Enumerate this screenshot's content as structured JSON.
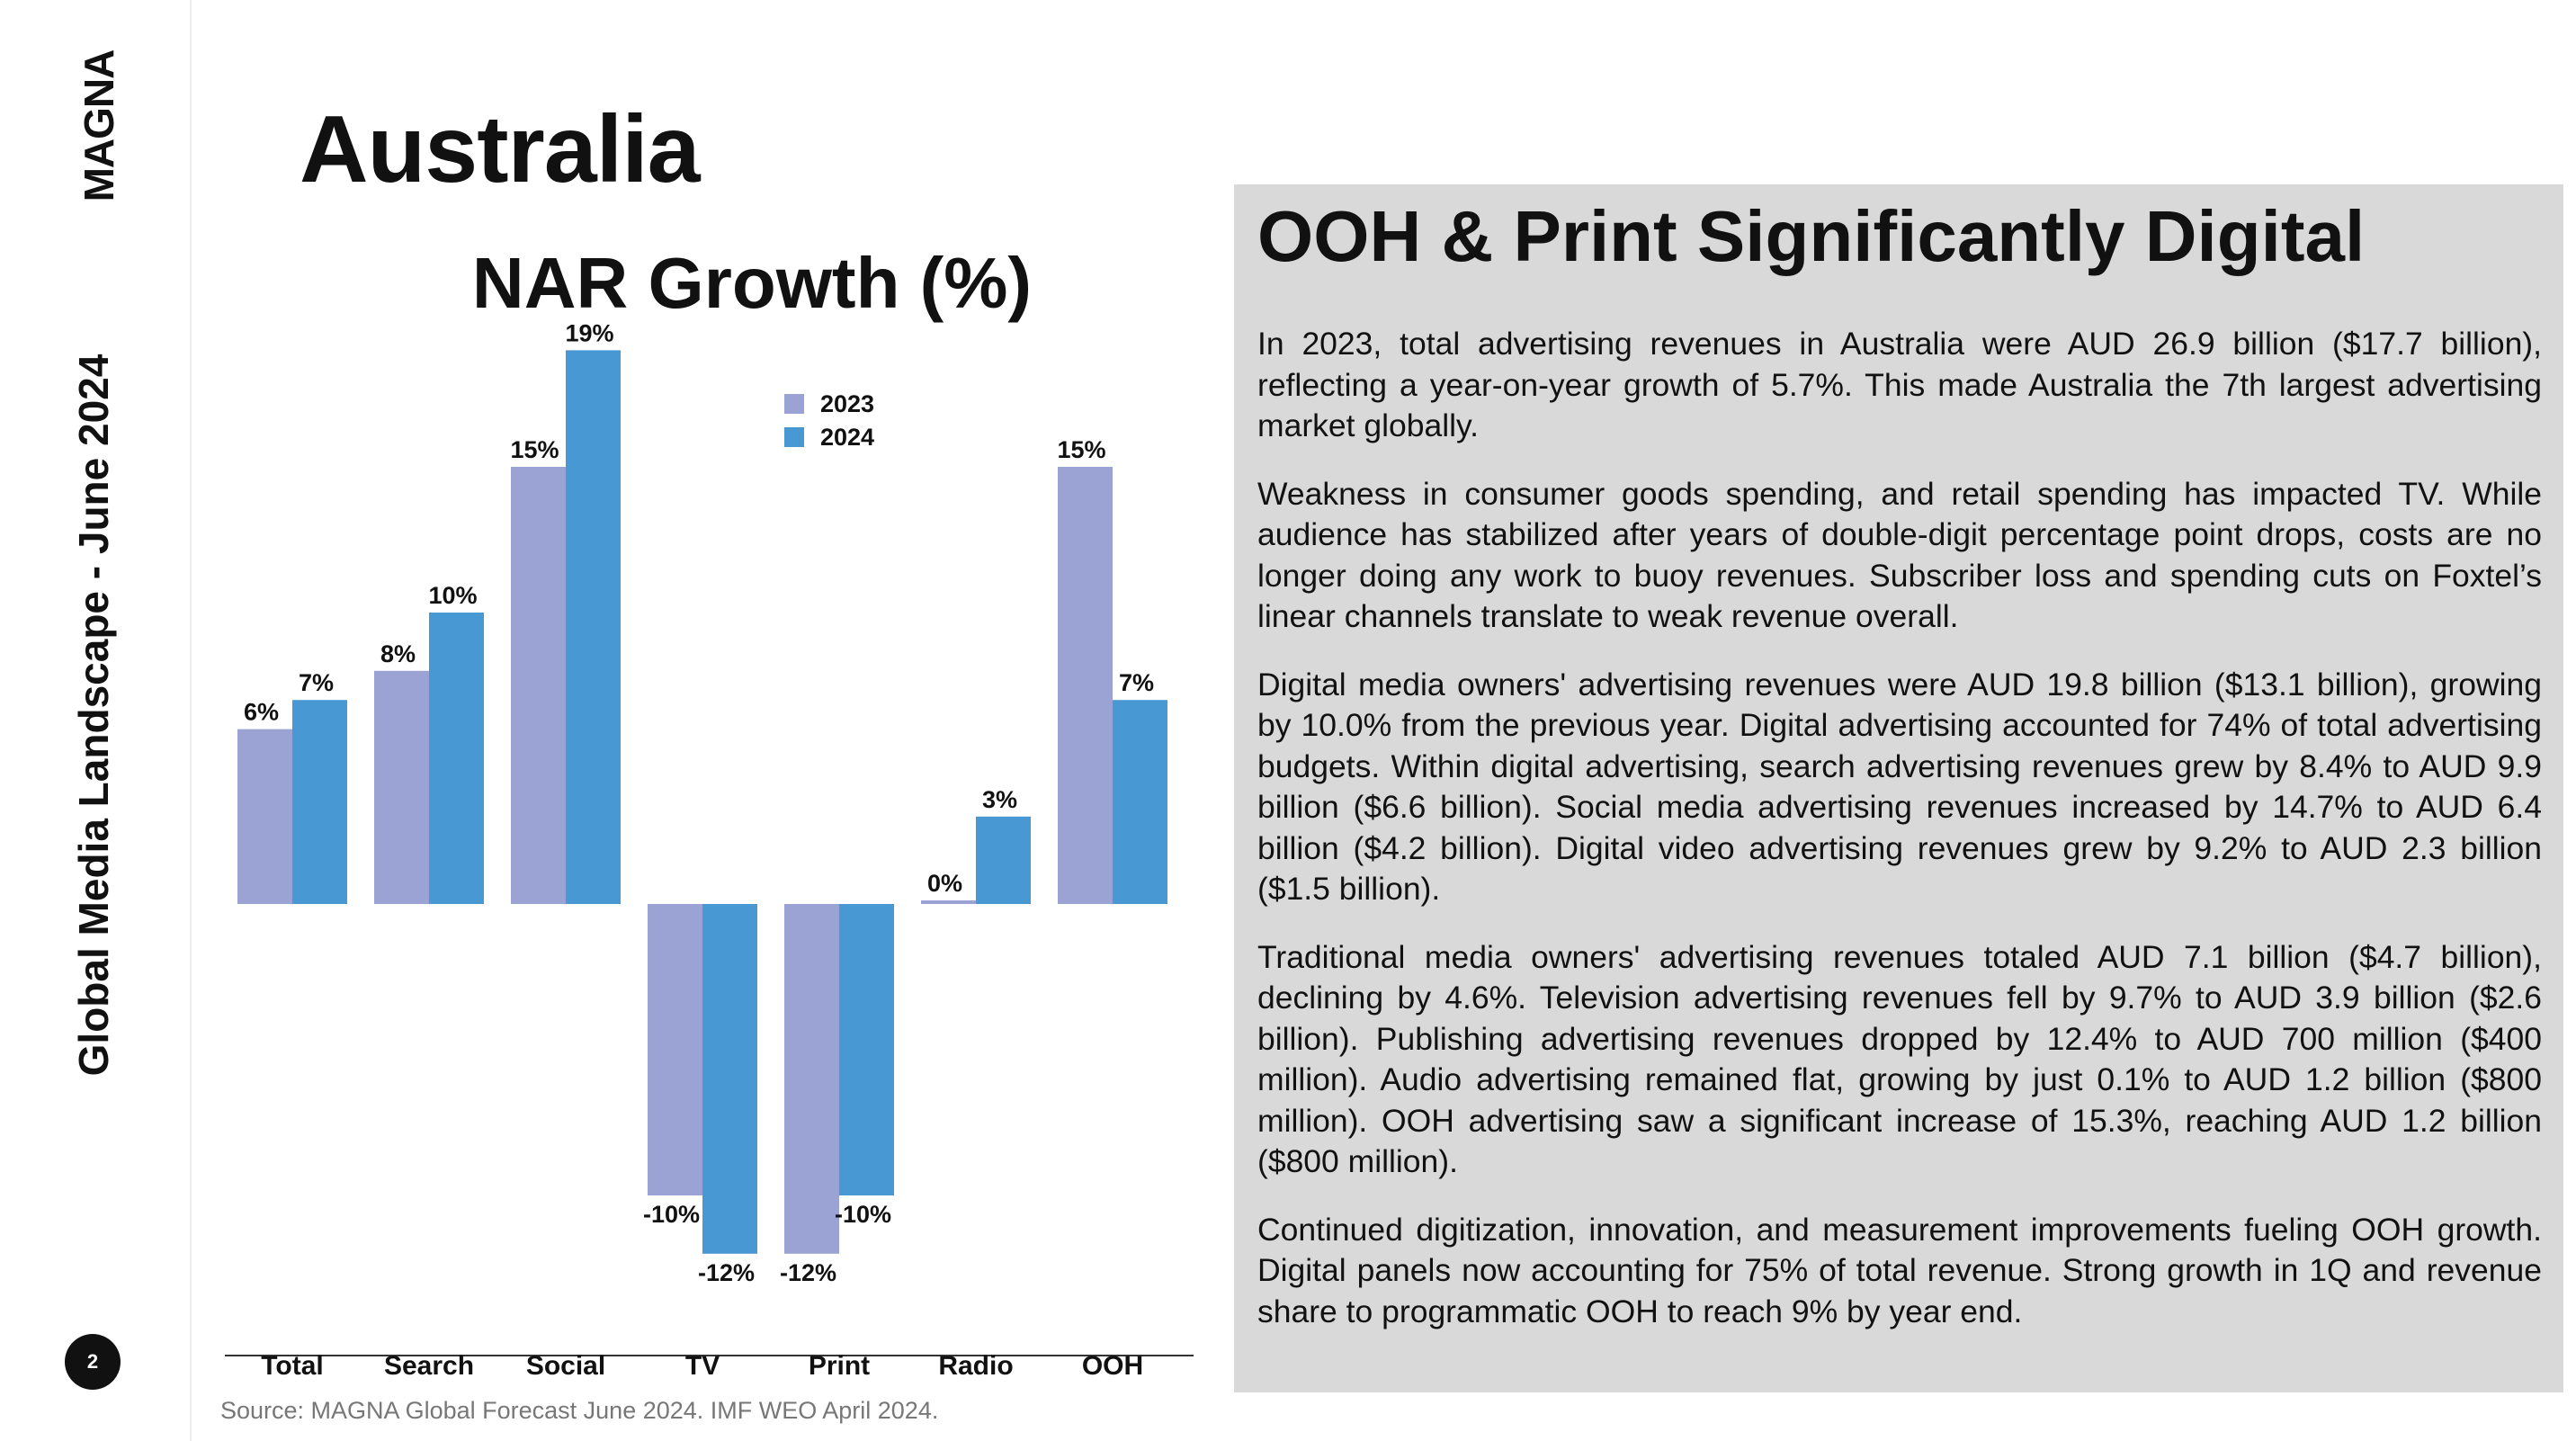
{
  "sidebar": {
    "logo_text": "MAGNA",
    "title": "Global Media Landscape - June 2024",
    "page_number": "2"
  },
  "page_title": "Australia",
  "colors": {
    "series_2023": "#9aa3d3",
    "series_2024": "#4898d4",
    "panel_bg": "#d9d9d9"
  },
  "chart_data": {
    "type": "bar",
    "title": "NAR Growth (%)",
    "categories": [
      "Total",
      "Search",
      "Social",
      "TV",
      "Print",
      "Radio",
      "OOH"
    ],
    "series": [
      {
        "name": "2023",
        "values": [
          6,
          8,
          15,
          -10,
          -12,
          0,
          15
        ],
        "labels": [
          "6%",
          "8%",
          "15%",
          "-10%",
          "-12%",
          "0%",
          "15%"
        ]
      },
      {
        "name": "2024",
        "values": [
          7,
          10,
          19,
          -12,
          -10,
          3,
          7
        ],
        "labels": [
          "7%",
          "10%",
          "19%",
          "-12%",
          "-10%",
          "3%",
          "7%"
        ]
      }
    ],
    "legend": "top-center",
    "grid": false
  },
  "source": "Source: MAGNA Global Forecast June 2024. IMF WEO April 2024.",
  "panel": {
    "title": "OOH & Print Significantly Digital",
    "paragraphs": [
      "In 2023, total advertising revenues in Australia were AUD 26.9 billion ($17.7 billion), reflecting a year-on-year growth of 5.7%. This made Australia the 7th largest advertising market globally.",
      "Weakness in consumer goods spending, and retail spending has impacted TV. While audience has stabilized after years of double-digit percentage point drops, costs are no longer doing any work to buoy revenues. Subscriber loss and spending cuts on Foxtel’s linear channels translate to weak revenue overall.",
      "Digital media owners' advertising revenues were AUD 19.8 billion ($13.1 billion), growing by 10.0% from the previous year. Digital advertising accounted for 74% of total advertising budgets. Within digital advertising, search advertising revenues grew by 8.4% to AUD 9.9 billion ($6.6 billion). Social media advertising revenues increased by 14.7% to AUD 6.4 billion ($4.2 billion). Digital video advertising revenues grew by 9.2% to AUD 2.3 billion ($1.5 billion).",
      "Traditional media owners' advertising revenues totaled AUD 7.1 billion ($4.7 billion), declining by 4.6%. Television advertising revenues fell by 9.7% to AUD 3.9 billion ($2.6 billion). Publishing advertising revenues dropped by 12.4% to AUD 700 million ($400 million). Audio advertising remained flat, growing by just 0.1% to AUD 1.2 billion ($800 million). OOH advertising saw a significant increase of 15.3%, reaching AUD 1.2 billion ($800 million).",
      "Continued digitization, innovation, and measurement improvements fueling OOH growth. Digital panels now accounting for 75% of total revenue.  Strong growth in 1Q and revenue share to programmatic OOH to reach 9% by year end."
    ]
  }
}
